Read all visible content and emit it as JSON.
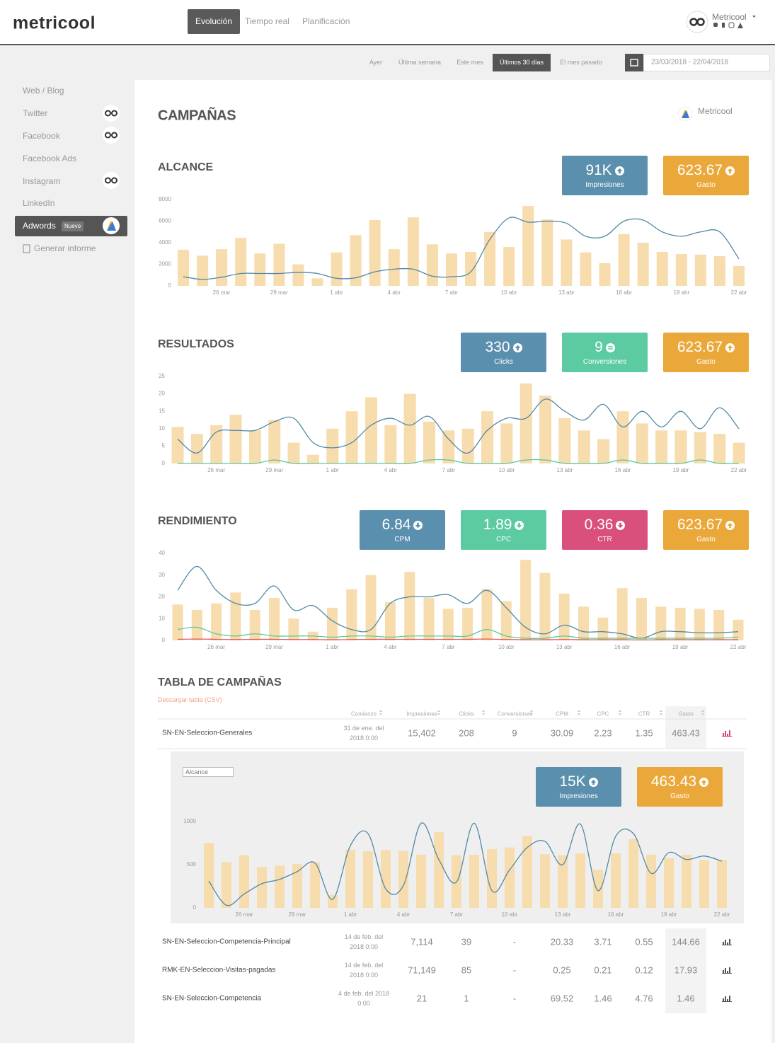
{
  "header": {
    "logo": "metricool",
    "tabs": [
      {
        "label": "Evolución",
        "active": true
      },
      {
        "label": "Tiempo real",
        "active": false
      },
      {
        "label": "Planificación",
        "active": false
      }
    ],
    "account": "Metricool"
  },
  "date_filter": {
    "options": [
      {
        "label": "Ayer",
        "active": false
      },
      {
        "label": "Última semana",
        "active": false
      },
      {
        "label": "Este mes",
        "active": false
      },
      {
        "label": "Últimos 30 días",
        "active": true
      },
      {
        "label": "El mes pasado",
        "active": false
      }
    ],
    "range": "23/03/2018 - 22/04/2018"
  },
  "sidebar": {
    "items": [
      "Web / Blog",
      "Twitter",
      "Facebook",
      "Facebook Ads",
      "Instagram",
      "LinkedIn",
      "Adwords",
      "Generar informe"
    ],
    "badge": "Nuevo"
  },
  "page": {
    "title": "CAMPAÑAS",
    "brand": "Metricool"
  },
  "chart_data": [
    {
      "type": "combo",
      "title": "ALCANCE",
      "categories": [
        null,
        null,
        "26 mar",
        null,
        null,
        "29 mar",
        null,
        null,
        "1 abr",
        null,
        null,
        "4 abr",
        null,
        null,
        "7 abr",
        null,
        null,
        "10 abr",
        null,
        null,
        "13 abr",
        null,
        null,
        "16 abr",
        null,
        null,
        "19 abr",
        null,
        null,
        "22 abr"
      ],
      "ylim": [
        0,
        8000
      ],
      "yticks": [
        0,
        2000,
        4000,
        6000,
        8000
      ],
      "grid": false,
      "series": [
        {
          "type": "bar",
          "color": "#f7dcae",
          "values": [
            3350,
            2800,
            3400,
            4450,
            3000,
            3900,
            2000,
            700,
            3100,
            4700,
            6100,
            3400,
            6350,
            3850,
            3000,
            3150,
            5000,
            3600,
            7400,
            6150,
            4300,
            3100,
            2100,
            4800,
            4000,
            3150,
            2950,
            2900,
            2750,
            1850
          ]
        },
        {
          "type": "line",
          "color": "#5289a6",
          "values": [
            850,
            600,
            800,
            1150,
            1150,
            1150,
            1250,
            1150,
            700,
            750,
            1300,
            1550,
            1550,
            900,
            850,
            1300,
            4300,
            6300,
            5900,
            6000,
            5800,
            4600,
            4600,
            6000,
            6100,
            5000,
            4600,
            5000,
            5000,
            2500
          ]
        }
      ],
      "cards": [
        {
          "value": "91K",
          "label": "Impresiones",
          "color": "#5b8fae",
          "trend": "up"
        },
        {
          "value": "623.67",
          "label": "Gasto",
          "color": "#eba83a",
          "trend": "up"
        }
      ]
    },
    {
      "type": "combo",
      "title": "RESULTADOS",
      "categories": [
        null,
        null,
        "26 mar",
        null,
        null,
        "29 mar",
        null,
        null,
        "1 abr",
        null,
        null,
        "4 abr",
        null,
        null,
        "7 abr",
        null,
        null,
        "10 abr",
        null,
        null,
        "13 abr",
        null,
        null,
        "16 abr",
        null,
        null,
        "19 abr",
        null,
        null,
        "22 abr"
      ],
      "ylim": [
        0,
        25
      ],
      "yticks": [
        0,
        5,
        10,
        15,
        20,
        25
      ],
      "grid": false,
      "series": [
        {
          "type": "bar",
          "color": "#f7dcae",
          "values": [
            10.5,
            8.5,
            11,
            14,
            9.5,
            12.5,
            6,
            2.5,
            10,
            15,
            19,
            11,
            20,
            12,
            9.5,
            10,
            15,
            11.5,
            23,
            19.5,
            13,
            9.5,
            7,
            15,
            11.5,
            9.5,
            9.5,
            9,
            8.5,
            6
          ]
        },
        {
          "type": "line",
          "color": "#5289a6",
          "values": [
            7,
            3,
            9,
            9.5,
            9.5,
            12,
            13,
            6,
            4.5,
            6,
            11,
            13,
            11,
            13.5,
            7,
            3,
            9.5,
            13,
            13,
            18.5,
            15,
            12.5,
            17,
            10.5,
            15,
            10.5,
            15,
            10,
            16,
            10
          ]
        },
        {
          "type": "line",
          "color": "#5cc99f",
          "values": [
            0,
            0,
            0,
            0,
            0,
            1,
            0,
            0,
            0,
            0,
            0,
            0,
            0,
            1,
            1,
            0,
            0,
            0,
            1,
            1,
            0,
            0,
            0,
            1,
            0,
            0,
            0,
            1,
            0,
            0
          ]
        }
      ],
      "cards": [
        {
          "value": "330",
          "label": "Clicks",
          "color": "#5b8fae",
          "trend": "up"
        },
        {
          "value": "9",
          "label": "Conversiones",
          "color": "#5ccba1",
          "trend": "equal"
        },
        {
          "value": "623.67",
          "label": "Gasto",
          "color": "#eba83a",
          "trend": "up"
        }
      ]
    },
    {
      "type": "combo",
      "title": "RENDIMIENTO",
      "categories": [
        null,
        null,
        "26 mar",
        null,
        null,
        "29 mar",
        null,
        null,
        "1 abr",
        null,
        null,
        "4 abr",
        null,
        null,
        "7 abr",
        null,
        null,
        "10 abr",
        null,
        null,
        "13 abr",
        null,
        null,
        "16 abr",
        null,
        null,
        "19 abr",
        null,
        null,
        "22 abr"
      ],
      "ylim": [
        0,
        40
      ],
      "yticks": [
        0,
        10,
        20,
        30,
        40
      ],
      "grid": false,
      "series": [
        {
          "type": "bar",
          "color": "#f7dcae",
          "values": [
            16.5,
            14,
            17,
            22,
            14,
            19.5,
            10,
            4,
            15,
            23.5,
            30,
            17.5,
            31.5,
            19.5,
            14.5,
            15,
            23.5,
            18,
            37,
            31,
            21.5,
            15.5,
            10.5,
            24,
            19.5,
            15.5,
            15,
            14.5,
            14,
            9.5
          ]
        },
        {
          "type": "line",
          "color": "#5289a6",
          "values": [
            23,
            34,
            23,
            17,
            17,
            25,
            14,
            16,
            9,
            5,
            5,
            17,
            20,
            20,
            21,
            17,
            23,
            15,
            6,
            3,
            7,
            4,
            4,
            3,
            1,
            4,
            4,
            3.5,
            3.5,
            4
          ]
        },
        {
          "type": "line",
          "color": "#5cc99f",
          "values": [
            5,
            6,
            3,
            2,
            3,
            2,
            2,
            2,
            1.5,
            2,
            2,
            1.5,
            2,
            2,
            2,
            2,
            5,
            2,
            1,
            1,
            2,
            1,
            1,
            1,
            1,
            1,
            1,
            1,
            1,
            1.5
          ]
        },
        {
          "type": "line",
          "color": "#e0584f",
          "values": [
            0.5,
            0.6,
            0.5,
            0.4,
            0.5,
            0.5,
            0.4,
            0.4,
            0.3,
            0.4,
            0.5,
            0.5,
            0.5,
            0.5,
            0.5,
            0.5,
            0.6,
            0.4,
            0.3,
            0.3,
            0.4,
            0.3,
            0.3,
            0.3,
            0.2,
            0.3,
            0.3,
            0.3,
            0.3,
            0.3
          ]
        }
      ],
      "cards": [
        {
          "value": "6.84",
          "label": "CPM",
          "color": "#5b8fae",
          "trend": "down"
        },
        {
          "value": "1.89",
          "label": "CPC",
          "color": "#5ccba1",
          "trend": "down"
        },
        {
          "value": "0.36",
          "label": "CTR",
          "color": "#d9507c",
          "trend": "down"
        },
        {
          "value": "623.67",
          "label": "Gasto",
          "color": "#eba83a",
          "trend": "up"
        }
      ]
    },
    {
      "type": "combo",
      "select": "Alcance",
      "categories": [
        null,
        null,
        "26 mar",
        null,
        null,
        "29 mar",
        null,
        null,
        "1 abr",
        null,
        null,
        "4 abr",
        null,
        null,
        "7 abr",
        null,
        null,
        "10 abr",
        null,
        null,
        "13 abr",
        null,
        null,
        "16 abr",
        null,
        null,
        "19 abr",
        null,
        null,
        "22 abr"
      ],
      "ylim": [
        0,
        1000
      ],
      "yticks": [
        0,
        500,
        1000
      ],
      "grid": false,
      "series": [
        {
          "type": "bar",
          "color": "#f7dcae",
          "values": [
            750,
            530,
            610,
            475,
            490,
            510,
            525,
            150,
            670,
            655,
            670,
            660,
            615,
            875,
            610,
            615,
            680,
            700,
            835,
            620,
            610,
            630,
            440,
            630,
            795,
            615,
            575,
            615,
            555,
            555
          ]
        },
        {
          "type": "line",
          "color": "#5289a6",
          "values": [
            310,
            30,
            160,
            280,
            330,
            420,
            520,
            100,
            720,
            860,
            220,
            260,
            980,
            560,
            300,
            980,
            200,
            440,
            700,
            770,
            500,
            970,
            200,
            830,
            860,
            400,
            640,
            560,
            600,
            540
          ]
        }
      ],
      "cards": [
        {
          "value": "15K",
          "label": "Impresiones",
          "color": "#5b8fae",
          "trend": "up"
        },
        {
          "value": "463.43",
          "label": "Gasto",
          "color": "#eba83a",
          "trend": "up"
        }
      ]
    }
  ],
  "table": {
    "title": "TABLA DE CAMPAÑAS",
    "download": "Descargar tabla (CSV)",
    "headers": [
      "Comienzo",
      "Impresiones",
      "Clicks",
      "Conversiones",
      "CPM",
      "CPC",
      "CTR",
      "Gasto"
    ],
    "rows": [
      [
        "SN-EN-Seleccion-Generales",
        "31 de ene. del 2018 0:00",
        "15,402",
        "208",
        "9",
        "30.09",
        "2.23",
        "1.35",
        "463.43"
      ],
      [
        "SN-EN-Seleccion-Competencia-Principal",
        "14 de feb. del 2018 0:00",
        "7,114",
        "39",
        "-",
        "20.33",
        "3.71",
        "0.55",
        "144.66"
      ],
      [
        "RMK-EN-Seleccion-Visitas-pagadas",
        "14 de feb. del 2018 0:00",
        "71,149",
        "85",
        "-",
        "0.25",
        "0.21",
        "0.12",
        "17.93"
      ],
      [
        "SN-EN-Seleccion-Competencia",
        "4 de feb. del 2018 0:00",
        "21",
        "1",
        "-",
        "69.52",
        "1.46",
        "4.76",
        "1.46"
      ]
    ]
  }
}
